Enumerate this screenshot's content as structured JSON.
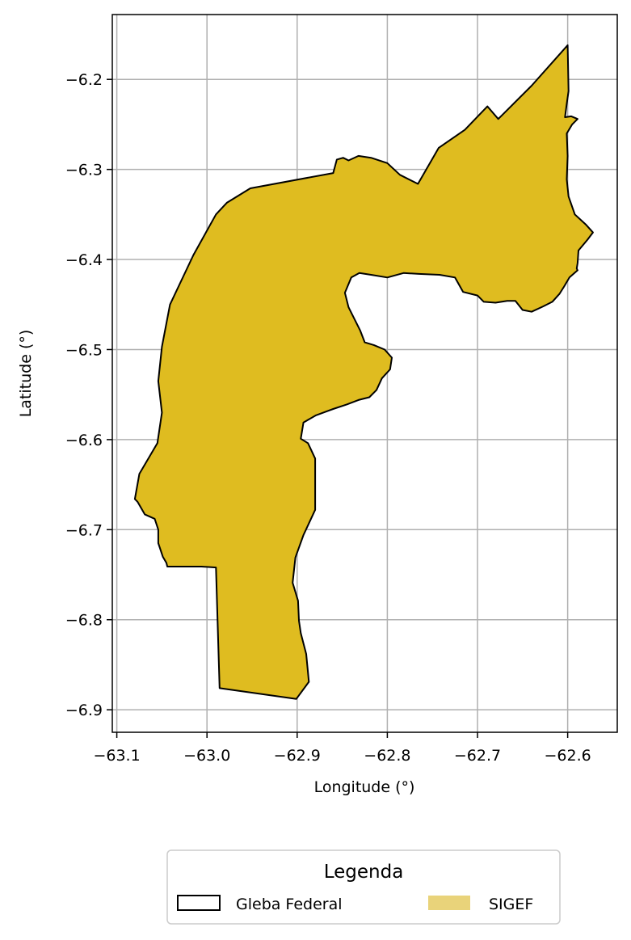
{
  "chart_data": {
    "type": "map",
    "xlabel": "Longitude (°)",
    "ylabel": "Latitude (°)",
    "xlim": [
      -63.105,
      -62.545
    ],
    "ylim": [
      -6.925,
      -6.128
    ],
    "xticks": [
      -63.1,
      -63.0,
      -62.9,
      -62.8,
      -62.7,
      -62.6
    ],
    "xtick_labels": [
      "−63.1",
      "−63.0",
      "−62.9",
      "−62.8",
      "−62.7",
      "−62.6"
    ],
    "yticks": [
      -6.2,
      -6.3,
      -6.4,
      -6.5,
      -6.6,
      -6.7,
      -6.8,
      -6.9
    ],
    "ytick_labels": [
      "−6.2",
      "−6.3",
      "−6.4",
      "−6.5",
      "−6.6",
      "−6.7",
      "−6.8",
      "−6.9"
    ],
    "grid": true,
    "legend": {
      "title": "Legenda",
      "placement": "below",
      "columns": 2,
      "entries": [
        {
          "label": "Gleba Federal",
          "style": "outline",
          "edge_color": "#000000",
          "face_color": "none"
        },
        {
          "label": "SIGEF",
          "style": "filled",
          "face_color": "#E9D37A"
        }
      ]
    },
    "polygon": {
      "face_color": "#DFBC20",
      "edge_color": "#000000",
      "coords": [
        [
          -62.6,
          -6.162
        ],
        [
          -62.599,
          -6.213
        ],
        [
          -62.601,
          -6.227
        ],
        [
          -62.603,
          -6.242
        ],
        [
          -62.596,
          -6.241
        ],
        [
          -62.589,
          -6.244
        ],
        [
          -62.595,
          -6.25
        ],
        [
          -62.601,
          -6.26
        ],
        [
          -62.6,
          -6.285
        ],
        [
          -62.601,
          -6.311
        ],
        [
          -62.599,
          -6.33
        ],
        [
          -62.592,
          -6.35
        ],
        [
          -62.58,
          -6.361
        ],
        [
          -62.572,
          -6.37
        ],
        [
          -62.578,
          -6.378
        ],
        [
          -62.588,
          -6.39
        ],
        [
          -62.589,
          -6.404
        ],
        [
          -62.59,
          -6.41
        ],
        [
          -62.589,
          -6.412
        ],
        [
          -62.598,
          -6.42
        ],
        [
          -62.604,
          -6.43
        ],
        [
          -62.609,
          -6.438
        ],
        [
          -62.617,
          -6.447
        ],
        [
          -62.627,
          -6.452
        ],
        [
          -62.64,
          -6.458
        ],
        [
          -62.65,
          -6.456
        ],
        [
          -62.658,
          -6.446
        ],
        [
          -62.667,
          -6.446
        ],
        [
          -62.68,
          -6.448
        ],
        [
          -62.693,
          -6.447
        ],
        [
          -62.7,
          -6.44
        ],
        [
          -62.716,
          -6.436
        ],
        [
          -62.725,
          -6.42
        ],
        [
          -62.742,
          -6.417
        ],
        [
          -62.765,
          -6.416
        ],
        [
          -62.782,
          -6.415
        ],
        [
          -62.8,
          -6.42
        ],
        [
          -62.818,
          -6.417
        ],
        [
          -62.831,
          -6.415
        ],
        [
          -62.84,
          -6.42
        ],
        [
          -62.847,
          -6.437
        ],
        [
          -62.843,
          -6.453
        ],
        [
          -62.836,
          -6.467
        ],
        [
          -62.83,
          -6.479
        ],
        [
          -62.825,
          -6.492
        ],
        [
          -62.815,
          -6.495
        ],
        [
          -62.803,
          -6.5
        ],
        [
          -62.795,
          -6.509
        ],
        [
          -62.797,
          -6.522
        ],
        [
          -62.806,
          -6.532
        ],
        [
          -62.812,
          -6.545
        ],
        [
          -62.82,
          -6.553
        ],
        [
          -62.832,
          -6.556
        ],
        [
          -62.845,
          -6.561
        ],
        [
          -62.86,
          -6.566
        ],
        [
          -62.879,
          -6.573
        ],
        [
          -62.893,
          -6.581
        ],
        [
          -62.896,
          -6.599
        ],
        [
          -62.888,
          -6.604
        ],
        [
          -62.88,
          -6.621
        ],
        [
          -62.88,
          -6.646
        ],
        [
          -62.88,
          -6.678
        ],
        [
          -62.893,
          -6.706
        ],
        [
          -62.902,
          -6.731
        ],
        [
          -62.905,
          -6.759
        ],
        [
          -62.899,
          -6.779
        ],
        [
          -62.898,
          -6.801
        ],
        [
          -62.896,
          -6.815
        ],
        [
          -62.89,
          -6.838
        ],
        [
          -62.887,
          -6.869
        ],
        [
          -62.901,
          -6.888
        ],
        [
          -62.986,
          -6.876
        ],
        [
          -62.99,
          -6.742
        ],
        [
          -63.006,
          -6.741
        ],
        [
          -63.044,
          -6.741
        ],
        [
          -63.045,
          -6.737
        ],
        [
          -63.049,
          -6.73
        ],
        [
          -63.054,
          -6.715
        ],
        [
          -63.054,
          -6.7
        ],
        [
          -63.058,
          -6.688
        ],
        [
          -63.069,
          -6.683
        ],
        [
          -63.077,
          -6.669
        ],
        [
          -63.08,
          -6.666
        ],
        [
          -63.075,
          -6.638
        ],
        [
          -63.055,
          -6.604
        ],
        [
          -63.05,
          -6.57
        ],
        [
          -63.054,
          -6.535
        ],
        [
          -63.05,
          -6.497
        ],
        [
          -63.041,
          -6.45
        ],
        [
          -63.015,
          -6.395
        ],
        [
          -62.99,
          -6.35
        ],
        [
          -62.978,
          -6.337
        ],
        [
          -62.952,
          -6.321
        ],
        [
          -62.86,
          -6.304
        ],
        [
          -62.856,
          -6.289
        ],
        [
          -62.849,
          -6.287
        ],
        [
          -62.843,
          -6.29
        ],
        [
          -62.832,
          -6.285
        ],
        [
          -62.818,
          -6.287
        ],
        [
          -62.8,
          -6.293
        ],
        [
          -62.786,
          -6.306
        ],
        [
          -62.766,
          -6.316
        ],
        [
          -62.743,
          -6.276
        ],
        [
          -62.714,
          -6.256
        ],
        [
          -62.689,
          -6.23
        ],
        [
          -62.677,
          -6.244
        ],
        [
          -62.64,
          -6.207
        ],
        [
          -62.6,
          -6.162
        ]
      ]
    }
  }
}
